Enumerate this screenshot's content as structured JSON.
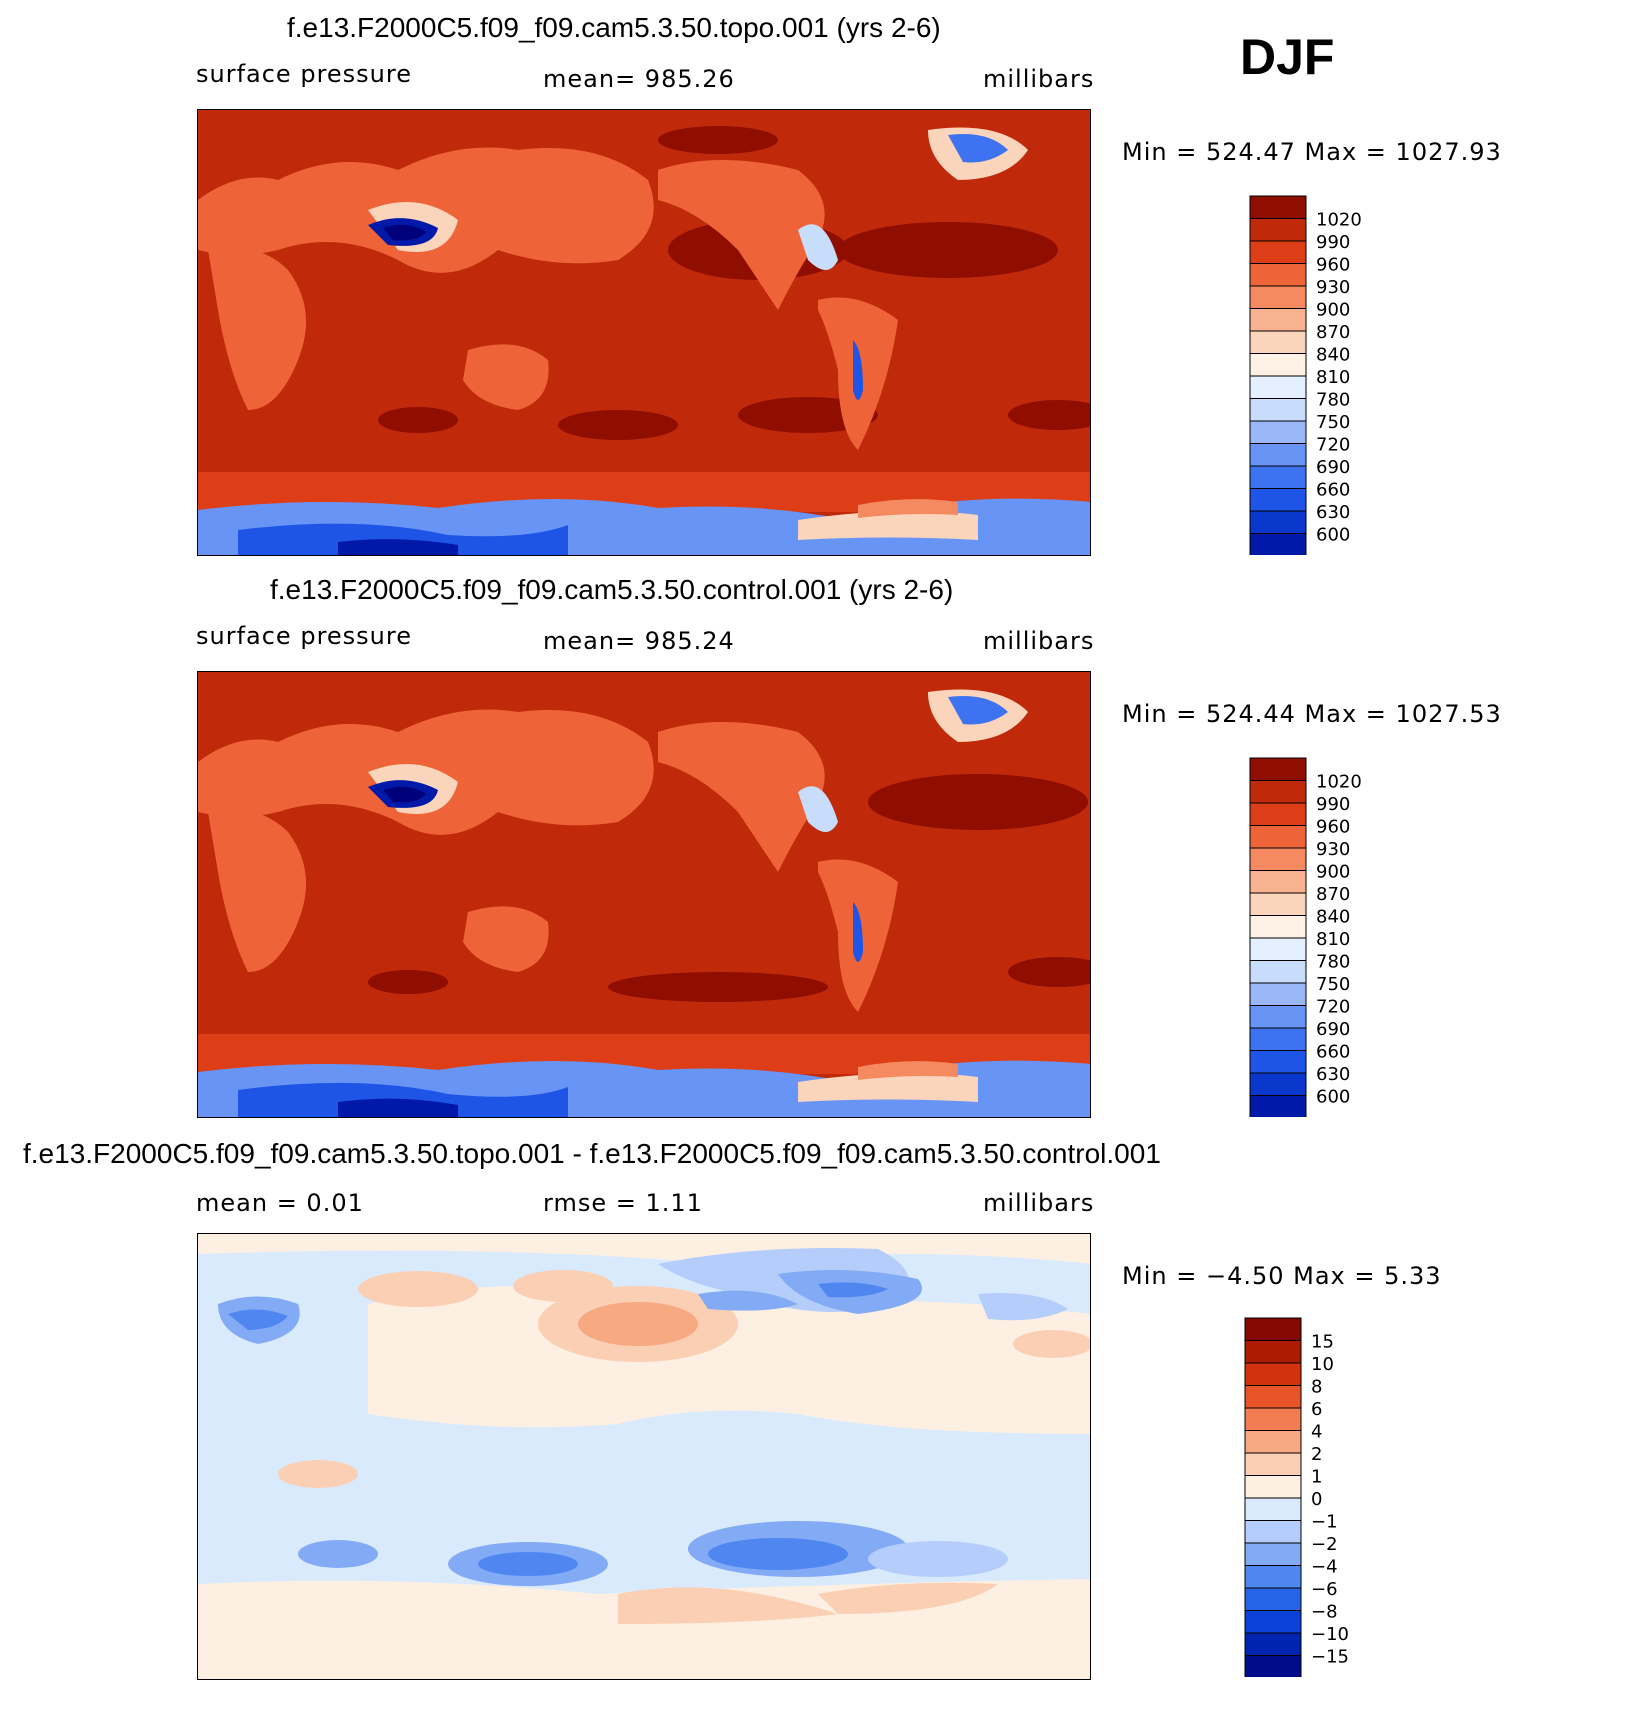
{
  "season_label": "DJF",
  "colors": {
    "pressure_scale": [
      "#00007a",
      "#0019a8",
      "#0a37cc",
      "#1f55e6",
      "#3d73f0",
      "#6895f5",
      "#9ab8f8",
      "#c8dcfb",
      "#e4efff",
      "#fdf1e6",
      "#fbd4bc",
      "#f8b28f",
      "#f58a61",
      "#ee6438",
      "#dd3e17",
      "#c02a0a",
      "#8f0e00"
    ],
    "diff_scale": [
      "#000d8a",
      "#0023b0",
      "#0b41d6",
      "#2563e8",
      "#4f86f0",
      "#82aaf5",
      "#b4cdfa",
      "#daeafd",
      "#fdefe2",
      "#fbcfb4",
      "#f7a982",
      "#f27d52",
      "#e85428",
      "#d2330d",
      "#ad1c00",
      "#850900"
    ]
  },
  "panels": [
    {
      "title": "f.e13.F2000C5.f09_f09.cam5.3.50.topo.001 (yrs 2-6)",
      "left_label": "surface pressure",
      "center_label": "mean=  985.26",
      "right_label": "millibars",
      "minmax": "Min  =  524.47  Max  =  1027.93",
      "colorbar_labels": [
        "1020",
        "990",
        "960",
        "930",
        "900",
        "870",
        "840",
        "810",
        "780",
        "750",
        "720",
        "690",
        "660",
        "630",
        "600"
      ]
    },
    {
      "title": "f.e13.F2000C5.f09_f09.cam5.3.50.control.001 (yrs 2-6)",
      "left_label": "surface pressure",
      "center_label": "mean=  985.24",
      "right_label": "millibars",
      "minmax": "Min  =  524.44  Max  =  1027.53",
      "colorbar_labels": [
        "1020",
        "990",
        "960",
        "930",
        "900",
        "870",
        "840",
        "810",
        "780",
        "750",
        "720",
        "690",
        "660",
        "630",
        "600"
      ]
    },
    {
      "title": "f.e13.F2000C5.f09_f09.cam5.3.50.topo.001 - f.e13.F2000C5.f09_f09.cam5.3.50.control.001",
      "left_label": "mean =     0.01",
      "center_label": "rmse =     1.11",
      "right_label": "millibars",
      "minmax": "Min  =    −4.50  Max  =     5.33",
      "colorbar_labels": [
        "15",
        "10",
        "8",
        "6",
        "4",
        "2",
        "1",
        "0",
        "−1",
        "−2",
        "−4",
        "−6",
        "−8",
        "−10",
        "−15"
      ]
    }
  ],
  "chart_data": [
    {
      "type": "heatmap",
      "title": "f.e13.F2000C5.f09_f09.cam5.3.50.topo.001 (yrs 2-6)",
      "variable": "surface pressure",
      "units": "millibars",
      "season": "DJF",
      "mean": 985.26,
      "min": 524.47,
      "max": 1027.93,
      "contour_levels": [
        600,
        630,
        660,
        690,
        720,
        750,
        780,
        810,
        840,
        870,
        900,
        930,
        960,
        990,
        1020
      ]
    },
    {
      "type": "heatmap",
      "title": "f.e13.F2000C5.f09_f09.cam5.3.50.control.001 (yrs 2-6)",
      "variable": "surface pressure",
      "units": "millibars",
      "season": "DJF",
      "mean": 985.24,
      "min": 524.44,
      "max": 1027.53,
      "contour_levels": [
        600,
        630,
        660,
        690,
        720,
        750,
        780,
        810,
        840,
        870,
        900,
        930,
        960,
        990,
        1020
      ]
    },
    {
      "type": "heatmap",
      "title": "f.e13.F2000C5.f09_f09.cam5.3.50.topo.001 - f.e13.F2000C5.f09_f09.cam5.3.50.control.001",
      "units": "millibars",
      "season": "DJF",
      "mean": 0.01,
      "rmse": 1.11,
      "min": -4.5,
      "max": 5.33,
      "contour_levels": [
        -15,
        -10,
        -8,
        -6,
        -4,
        -2,
        -1,
        0,
        1,
        2,
        4,
        6,
        8,
        10,
        15
      ]
    }
  ]
}
